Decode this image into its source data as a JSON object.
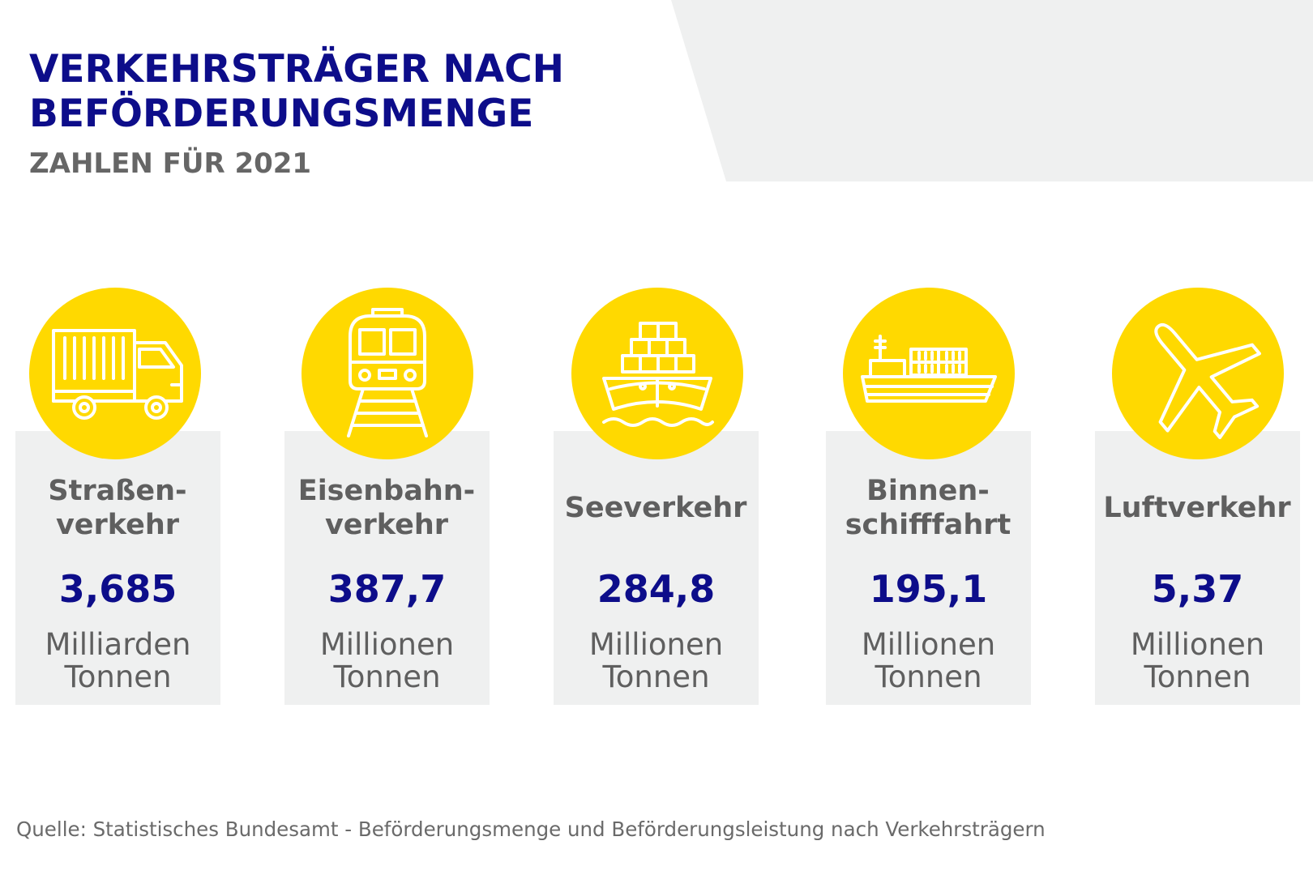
{
  "title_lines": [
    "VERKEHRSTRÄGER NACH",
    "BEFÖRDERUNGSMENGE"
  ],
  "subtitle": "ZAHLEN FÜR 2021",
  "colors": {
    "title": "#0d0d8a",
    "accent_circle": "#ffd900",
    "card_background": "#eff0f0",
    "text_gray": "#5f5f5f"
  },
  "items": [
    {
      "icon": "truck-icon",
      "label_lines": [
        "Straßen-",
        "verkehr"
      ],
      "value": "3,685",
      "unit_lines": [
        "Milliarden",
        "Tonnen"
      ]
    },
    {
      "icon": "train-icon",
      "label_lines": [
        "Eisenbahn-",
        "verkehr"
      ],
      "value": "387,7",
      "unit_lines": [
        "Millionen",
        "Tonnen"
      ]
    },
    {
      "icon": "container-ship-icon",
      "label_lines": [
        "Seeverkehr"
      ],
      "value": "284,8",
      "unit_lines": [
        "Millionen",
        "Tonnen"
      ]
    },
    {
      "icon": "inland-ship-icon",
      "label_lines": [
        "Binnen-",
        "schifffahrt"
      ],
      "value": "195,1",
      "unit_lines": [
        "Millionen",
        "Tonnen"
      ]
    },
    {
      "icon": "airplane-icon",
      "label_lines": [
        "Luftverkehr"
      ],
      "value": "5,37",
      "unit_lines": [
        "Millionen",
        "Tonnen"
      ]
    }
  ],
  "source": "Quelle: Statistisches Bundesamt - Beförderungsmenge und Beförderungsleistung nach Verkehrsträgern"
}
